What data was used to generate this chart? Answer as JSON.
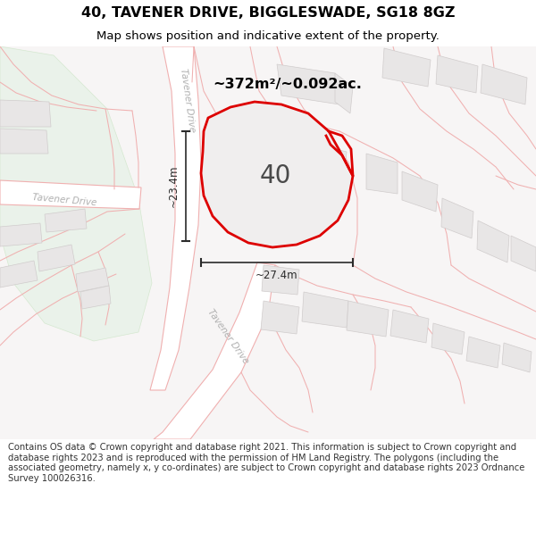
{
  "title": "40, TAVENER DRIVE, BIGGLESWADE, SG18 8GZ",
  "subtitle": "Map shows position and indicative extent of the property.",
  "footer": "Contains OS data © Crown copyright and database right 2021. This information is subject to Crown copyright and database rights 2023 and is reproduced with the permission of HM Land Registry. The polygons (including the associated geometry, namely x, y co-ordinates) are subject to Crown copyright and database rights 2023 Ordnance Survey 100026316.",
  "map_bg": "#f7f5f5",
  "road_fill": "#ffffff",
  "road_line_color": "#f0b0b0",
  "building_fill": "#e8e6e6",
  "building_edge": "#d0cccc",
  "green_fill": "#eaf2ea",
  "green_edge": "#d5e8d0",
  "plot_outline_color": "#dd0000",
  "plot_fill": "#f0eeee",
  "measurement_color": "#2a2a2a",
  "area_text": "~372m²/~0.092ac.",
  "label_40": "40",
  "dim_h": "~23.4m",
  "dim_w": "~27.4m",
  "road_label_color": "#b0b0b0",
  "title_fontsize": 11.5,
  "subtitle_fontsize": 9.5,
  "footer_fontsize": 7.2,
  "title_weight": "bold"
}
